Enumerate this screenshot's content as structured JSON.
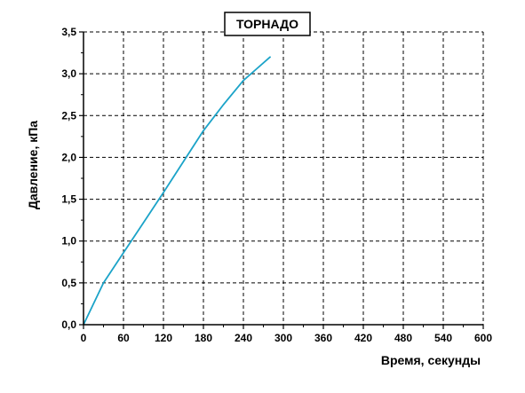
{
  "chart_data": {
    "type": "line",
    "title": "ТОРНАДО",
    "xlabel": "Время, секунды",
    "ylabel": "Давление, кПа",
    "xlim": [
      0,
      600
    ],
    "ylim": [
      0,
      3.5
    ],
    "xticks": [
      0,
      60,
      120,
      180,
      240,
      300,
      360,
      420,
      480,
      540,
      600
    ],
    "yticks": [
      0,
      0.5,
      1.0,
      1.5,
      2.0,
      2.5,
      3.0,
      3.5
    ],
    "xtick_labels": [
      "0",
      "60",
      "120",
      "180",
      "240",
      "300",
      "360",
      "420",
      "480",
      "540",
      "600"
    ],
    "ytick_labels": [
      "0,0",
      "0,5",
      "1,0",
      "1,5",
      "2,0",
      "2,5",
      "3,0",
      "3,5"
    ],
    "grid": true,
    "legend": "none",
    "series": [
      {
        "color": "#1ba3c8",
        "x": [
          0,
          30,
          60,
          90,
          120,
          150,
          180,
          210,
          240,
          260,
          280
        ],
        "y": [
          0.0,
          0.5,
          0.86,
          1.22,
          1.58,
          1.95,
          2.32,
          2.63,
          2.92,
          3.06,
          3.2
        ]
      }
    ]
  }
}
